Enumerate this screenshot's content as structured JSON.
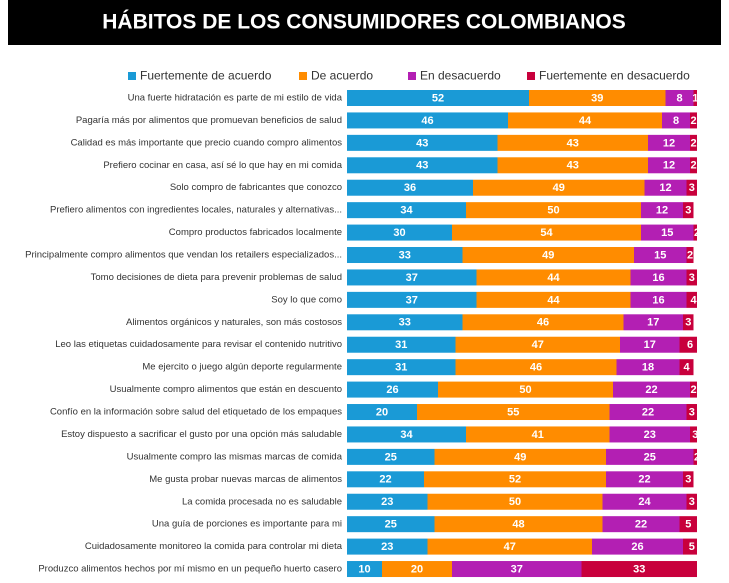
{
  "chart_data": {
    "type": "stacked_barh",
    "title": "HÁBITOS DE LOS CONSUMIDORES COLOMBIANOS",
    "categories": [
      "Una fuerte hidratación es parte de mi estilo de vida",
      "Pagaría más por alimentos que promuevan beneficios de salud",
      "Calidad es más importante que precio cuando compro alimentos",
      "Prefiero cocinar en casa, así sé lo que hay en mi comida",
      "Solo compro de fabricantes que conozco",
      "Prefiero alimentos con ingredientes locales, naturales y alternativas...",
      "Compro productos fabricados localmente",
      "Principalmente compro alimentos que vendan los retailers especializados...",
      "Tomo decisiones de dieta para prevenir problemas de salud",
      "Soy lo que como",
      "Alimentos orgánicos y naturales, son más costosos",
      "Leo las etiquetas cuidadosamente para revisar el contenido nutritivo",
      "Me ejercito o juego algún deporte regularmente",
      "Usualmente compro alimentos que están en descuento",
      "Confío en la información sobre salud del etiquetado de los empaques",
      "Estoy dispuesto a sacrificar el gusto por una opción más saludable",
      "Usualmente compro las mismas marcas de comida",
      "Me gusta probar nuevas marcas de alimentos",
      "La comida procesada no es saludable",
      "Una guía de porciones es importante para mi",
      "Cuidadosamente monitoreo la comida para controlar mi dieta",
      "Produzco alimentos hechos por mí mismo en un pequeño huerto casero"
    ],
    "series": [
      {
        "name": "Fuertemente de acuerdo",
        "color": "#1a9ad6",
        "values": [
          52,
          46,
          43,
          43,
          36,
          34,
          30,
          33,
          37,
          37,
          33,
          31,
          31,
          26,
          20,
          34,
          25,
          22,
          23,
          25,
          23,
          10
        ]
      },
      {
        "name": "De acuerdo",
        "color": "#ff8c00",
        "values": [
          39,
          44,
          43,
          43,
          49,
          50,
          54,
          49,
          44,
          44,
          46,
          47,
          46,
          50,
          55,
          41,
          49,
          52,
          50,
          48,
          47,
          20
        ]
      },
      {
        "name": "En desacuerdo",
        "color": "#b31fb3",
        "values": [
          8,
          8,
          12,
          12,
          12,
          12,
          15,
          15,
          16,
          16,
          17,
          17,
          18,
          22,
          22,
          23,
          25,
          22,
          24,
          22,
          26,
          37
        ]
      },
      {
        "name": "Fuertemente en desacuerdo",
        "color": "#c8003c",
        "values": [
          1,
          2,
          2,
          2,
          3,
          3,
          2,
          2,
          3,
          4,
          3,
          6,
          4,
          2,
          3,
          3,
          2,
          3,
          3,
          5,
          5,
          33
        ]
      }
    ]
  }
}
